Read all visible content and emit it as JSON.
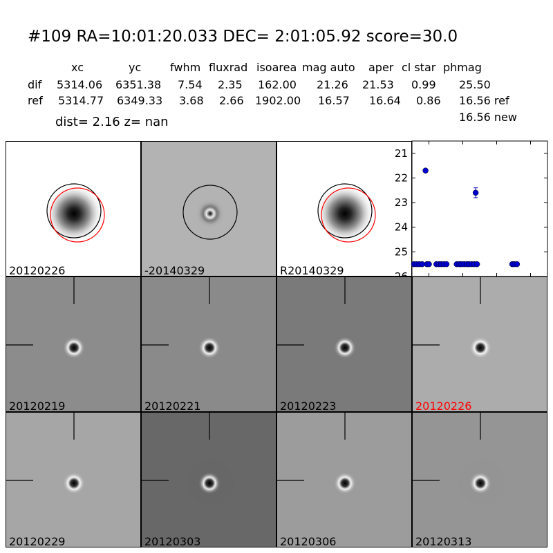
{
  "header": {
    "title": "#109   RA=10:01:20.033 DEC= 2:01:05.92      score=30.0",
    "columns": [
      "xc",
      "yc",
      "fwhm",
      "fluxrad",
      "isoarea",
      "mag auto",
      "aper",
      "cl star",
      "phmag"
    ],
    "dif": {
      "label": "dif",
      "values": [
        "5314.06",
        "6351.38",
        "7.54",
        "2.35",
        "162.00",
        "21.26",
        "21.53",
        "0.99",
        "25.50"
      ]
    },
    "ref": {
      "label": "ref",
      "values": [
        "5314.77",
        "6349.33",
        "3.68",
        "2.66",
        "1902.00",
        "16.57",
        "16.64",
        "0.86",
        "16.56 ref"
      ]
    },
    "new_phmag": "16.56 new",
    "dist_line": "dist=  2.16      z=   nan"
  },
  "top_panels": [
    {
      "label": "20120226",
      "bg": "#ffffff"
    },
    {
      "label": "-20140329",
      "bg": "#b3b3b3"
    },
    {
      "label": "R20140329",
      "bg": "#ffffff"
    }
  ],
  "stamps": [
    {
      "label": "20120219",
      "bg": "#8c8c8c",
      "highlight": false
    },
    {
      "label": "20120221",
      "bg": "#8a8a8a",
      "highlight": false
    },
    {
      "label": "20120223",
      "bg": "#7a7a7a",
      "highlight": false
    },
    {
      "label": "20120226",
      "bg": "#acacac",
      "highlight": true
    },
    {
      "label": "20120229",
      "bg": "#a6a6a6",
      "highlight": false
    },
    {
      "label": "20120303",
      "bg": "#686868",
      "highlight": false
    },
    {
      "label": "20120306",
      "bg": "#9c9c9c",
      "highlight": false
    },
    {
      "label": "20120313",
      "bg": "#959595",
      "highlight": false
    }
  ],
  "colors": {
    "marker": "#0000cc",
    "red_circle": "#ff0000",
    "highlight_label": "#ff0000"
  },
  "chart_data": {
    "type": "scatter",
    "xlim": [
      -75,
      125
    ],
    "ylim": [
      26,
      20.5
    ],
    "xticks": [
      -50,
      0,
      50,
      100
    ],
    "yticks": [
      21,
      22,
      23,
      24,
      25,
      26
    ],
    "points": [
      {
        "x": -72,
        "y": 25.5
      },
      {
        "x": -68,
        "y": 25.5
      },
      {
        "x": -64,
        "y": 25.5
      },
      {
        "x": -60,
        "y": 25.5
      },
      {
        "x": -55,
        "y": 21.7
      },
      {
        "x": -53,
        "y": 25.5
      },
      {
        "x": -50,
        "y": 25.5
      },
      {
        "x": -39,
        "y": 25.5
      },
      {
        "x": -35,
        "y": 25.5
      },
      {
        "x": -32,
        "y": 25.5
      },
      {
        "x": -28,
        "y": 25.5
      },
      {
        "x": -24,
        "y": 25.5
      },
      {
        "x": -9,
        "y": 25.5
      },
      {
        "x": -5,
        "y": 25.5
      },
      {
        "x": -2,
        "y": 25.5
      },
      {
        "x": 2,
        "y": 25.5
      },
      {
        "x": 6,
        "y": 25.5
      },
      {
        "x": 9,
        "y": 25.5
      },
      {
        "x": 13,
        "y": 25.5
      },
      {
        "x": 17,
        "y": 25.5
      },
      {
        "x": 21,
        "y": 25.5
      },
      {
        "x": 19,
        "y": 22.6,
        "err": 0.2
      },
      {
        "x": 73,
        "y": 25.5
      },
      {
        "x": 76,
        "y": 25.5
      },
      {
        "x": 80,
        "y": 25.5
      }
    ]
  }
}
